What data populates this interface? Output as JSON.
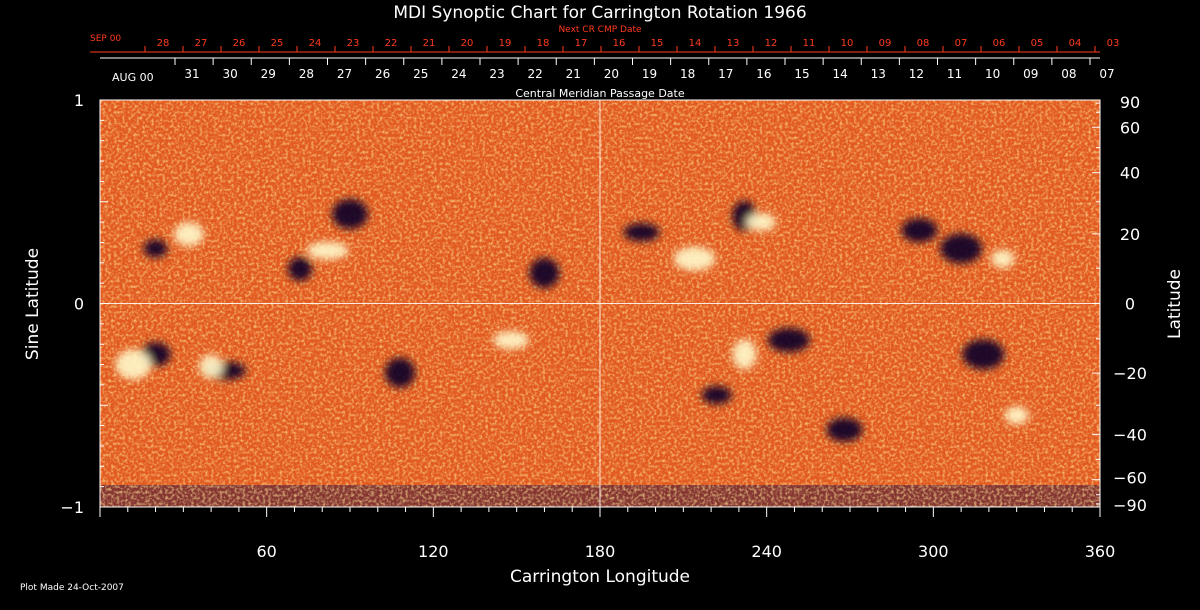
{
  "chart_data": {
    "type": "heatmap",
    "title": "MDI Synoptic Chart for Carrington Rotation 1966",
    "xlabel": "Carrington Longitude",
    "ylabel_left": "Sine Latitude",
    "ylabel_right": "Latitude",
    "xlim": [
      0,
      360
    ],
    "ylim": [
      -1,
      1
    ],
    "x_ticks": [
      60,
      120,
      180,
      240,
      300,
      360
    ],
    "y_ticks_left": [
      1,
      0,
      -1
    ],
    "y_ticks_left_labels": [
      "1",
      "0",
      "−1"
    ],
    "latitude_ticks": [
      90,
      60,
      40,
      20,
      0,
      -20,
      -40,
      -60,
      -90
    ],
    "latitude_tick_labels": [
      "90",
      "60",
      "40",
      "20",
      "0",
      "−20",
      "−40",
      "−60",
      "−90"
    ],
    "grid_lines": {
      "x": [
        180
      ],
      "y": [
        0
      ]
    },
    "top_axis_red": {
      "label": "Next CR CMP Date",
      "month": "SEP 00",
      "days": [
        "28",
        "27",
        "26",
        "25",
        "24",
        "23",
        "22",
        "21",
        "20",
        "19",
        "18",
        "17",
        "16",
        "15",
        "14",
        "13",
        "12",
        "11",
        "10",
        "09",
        "08",
        "07",
        "06",
        "05",
        "04",
        "03"
      ]
    },
    "top_axis_white": {
      "label": "Central Meridian Passage Date",
      "month": "AUG 00",
      "days": [
        "31",
        "30",
        "29",
        "28",
        "27",
        "26",
        "25",
        "24",
        "23",
        "22",
        "21",
        "20",
        "19",
        "18",
        "17",
        "16",
        "15",
        "14",
        "13",
        "12",
        "11",
        "10",
        "09",
        "08",
        "07"
      ]
    },
    "regions": [
      {
        "lon": 20,
        "sinlat": 0.27,
        "polarity": "negative"
      },
      {
        "lon": 32,
        "sinlat": 0.34,
        "polarity": "positive"
      },
      {
        "lon": 90,
        "sinlat": 0.44,
        "polarity": "negative"
      },
      {
        "lon": 82,
        "sinlat": 0.26,
        "polarity": "positive"
      },
      {
        "lon": 72,
        "sinlat": 0.17,
        "polarity": "negative"
      },
      {
        "lon": 160,
        "sinlat": 0.15,
        "polarity": "negative"
      },
      {
        "lon": 195,
        "sinlat": 0.35,
        "polarity": "negative"
      },
      {
        "lon": 214,
        "sinlat": 0.22,
        "polarity": "positive"
      },
      {
        "lon": 232,
        "sinlat": 0.43,
        "polarity": "negative"
      },
      {
        "lon": 238,
        "sinlat": 0.4,
        "polarity": "positive"
      },
      {
        "lon": 295,
        "sinlat": 0.36,
        "polarity": "negative"
      },
      {
        "lon": 310,
        "sinlat": 0.27,
        "polarity": "negative"
      },
      {
        "lon": 325,
        "sinlat": 0.22,
        "polarity": "positive"
      },
      {
        "lon": 20,
        "sinlat": -0.25,
        "polarity": "negative"
      },
      {
        "lon": 12,
        "sinlat": -0.3,
        "polarity": "positive"
      },
      {
        "lon": 45,
        "sinlat": -0.33,
        "polarity": "negative"
      },
      {
        "lon": 40,
        "sinlat": -0.31,
        "polarity": "positive"
      },
      {
        "lon": 108,
        "sinlat": -0.34,
        "polarity": "negative"
      },
      {
        "lon": 148,
        "sinlat": -0.18,
        "polarity": "positive"
      },
      {
        "lon": 248,
        "sinlat": -0.18,
        "polarity": "negative"
      },
      {
        "lon": 232,
        "sinlat": -0.25,
        "polarity": "positive"
      },
      {
        "lon": 222,
        "sinlat": -0.45,
        "polarity": "negative"
      },
      {
        "lon": 268,
        "sinlat": -0.62,
        "polarity": "negative"
      },
      {
        "lon": 318,
        "sinlat": -0.25,
        "polarity": "negative"
      },
      {
        "lon": 330,
        "sinlat": -0.55,
        "polarity": "positive"
      }
    ]
  },
  "footer": {
    "plot_made": "Plot Made 24-Oct-2007"
  },
  "colors": {
    "background": "#000000",
    "field": "#e8501e",
    "positive": "#fff6c8",
    "negative": "#0a0628",
    "date_red": "#ff3b1f"
  }
}
